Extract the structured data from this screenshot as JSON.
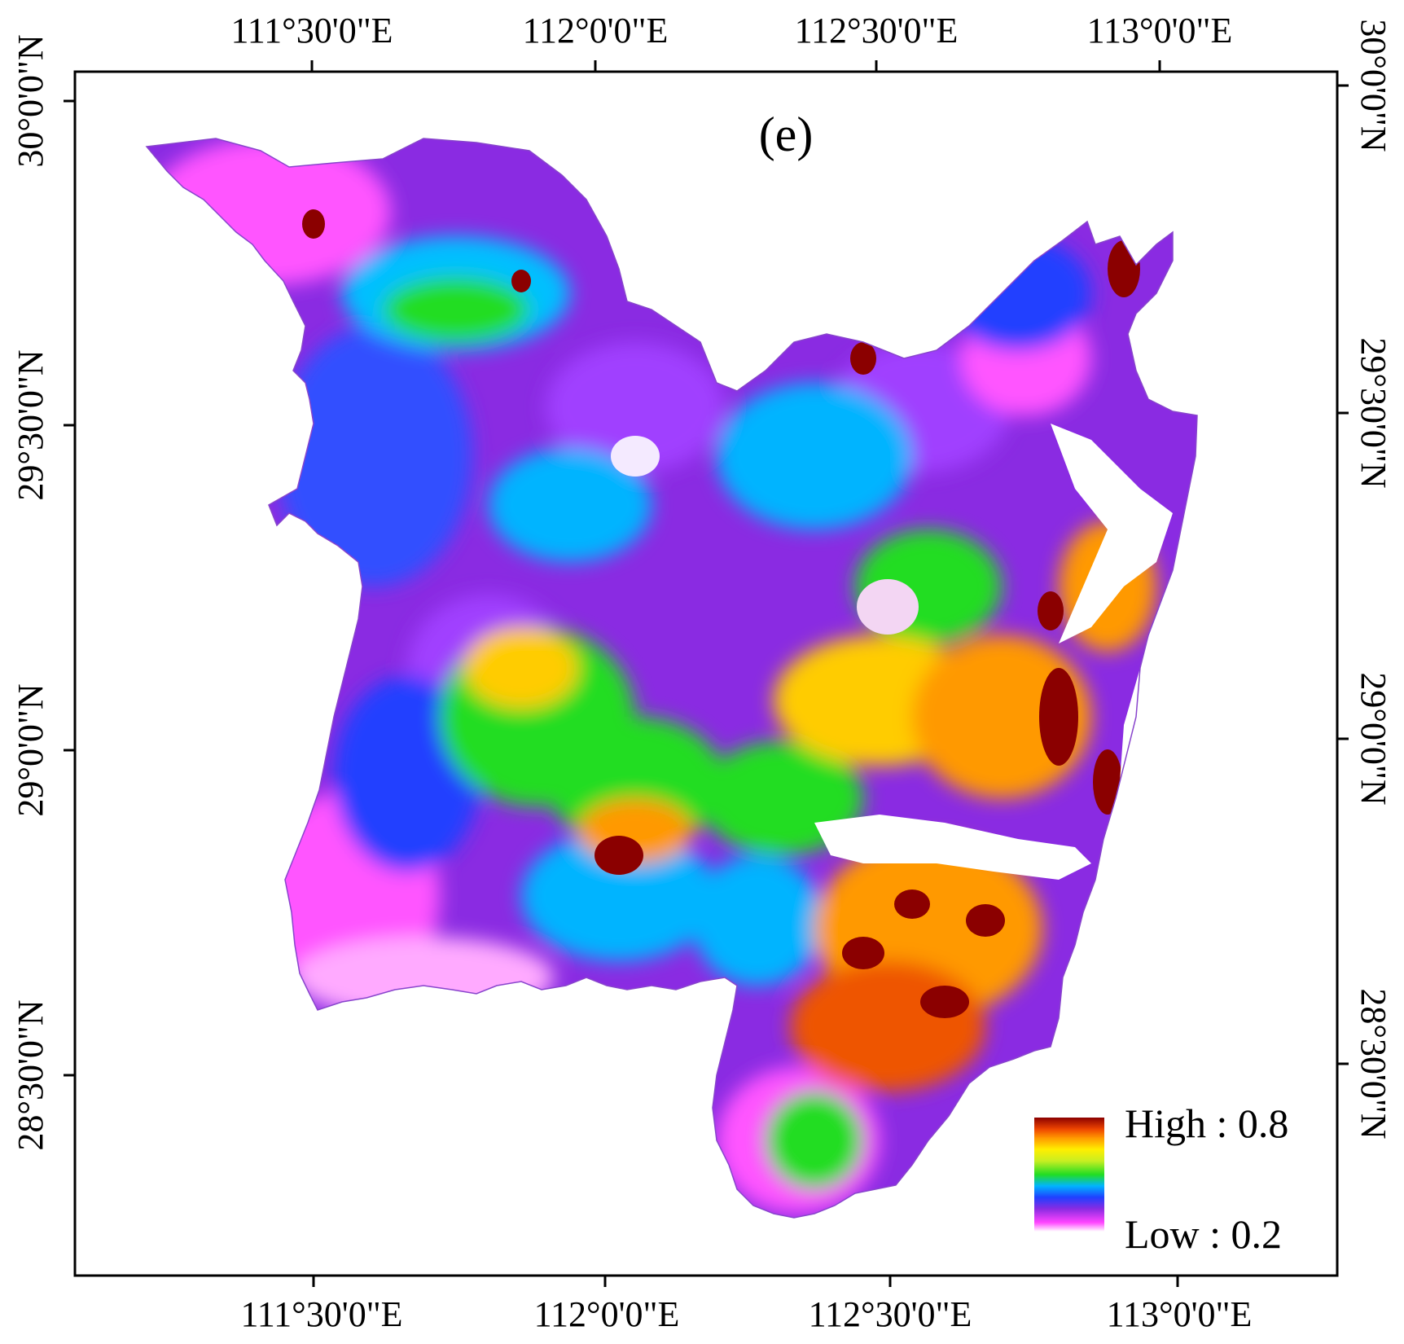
{
  "panel_label": "(e)",
  "x_ticks": [
    "111°30'0\"E",
    "112°0'0\"E",
    "112°30'0\"E",
    "113°0'0\"E"
  ],
  "y_ticks": [
    "30°0'0\"N",
    "29°30'0\"N",
    "29°0'0\"N",
    "28°30'0\"N"
  ],
  "legend": {
    "high_label": "High : 0.8",
    "low_label": "Low : 0.2",
    "high_value": 0.8,
    "low_value": 0.2
  },
  "colors": {
    "ramp": [
      "#ffffff",
      "#ff44ff",
      "#8a2be2",
      "#2040ff",
      "#00b4ff",
      "#00e0b0",
      "#22dd22",
      "#c8ee22",
      "#ffee00",
      "#ff9900",
      "#ee4400",
      "#8b0000"
    ],
    "frame": "#000000",
    "background": "#ffffff"
  }
}
